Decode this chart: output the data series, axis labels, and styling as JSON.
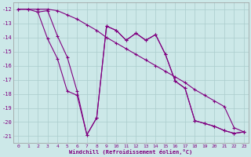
{
  "xlabel": "Windchill (Refroidissement éolien,°C)",
  "bg_color": "#cce8e8",
  "line_color": "#800080",
  "grid_color": "#aacccc",
  "xlim": [
    -0.5,
    23.5
  ],
  "ylim": [
    -21.5,
    -11.5
  ],
  "yticks": [
    -12,
    -13,
    -14,
    -15,
    -16,
    -17,
    -18,
    -19,
    -20,
    -21
  ],
  "xticks": [
    0,
    1,
    2,
    3,
    4,
    5,
    6,
    7,
    8,
    9,
    10,
    11,
    12,
    13,
    14,
    15,
    16,
    17,
    18,
    19,
    20,
    21,
    22,
    23
  ],
  "line1_x": [
    0,
    1,
    2,
    3,
    4,
    5,
    6,
    7,
    8,
    9,
    10,
    11,
    12,
    13,
    14,
    15,
    16,
    17,
    18,
    19,
    20,
    21,
    22,
    23
  ],
  "line1_y": [
    -12,
    -12,
    -12.2,
    -12.1,
    -13.9,
    -15.4,
    -17.8,
    -20.9,
    -19.7,
    -13.2,
    -13.5,
    -14.2,
    -13.7,
    -14.2,
    -13.8,
    -15.2,
    -17.1,
    -17.6,
    -19.9,
    -20.1,
    -20.3,
    -20.6,
    -20.8,
    -20.7
  ],
  "line2_x": [
    0,
    1,
    2,
    3,
    4,
    5,
    6,
    7,
    8,
    9,
    10,
    11,
    12,
    13,
    14,
    15,
    16,
    17,
    18,
    19,
    20,
    21,
    22,
    23
  ],
  "line2_y": [
    -12,
    -12,
    -12,
    -12,
    -12.1,
    -12.4,
    -12.7,
    -13.1,
    -13.5,
    -14.0,
    -14.4,
    -14.8,
    -15.2,
    -15.6,
    -16.0,
    -16.4,
    -16.8,
    -17.2,
    -17.7,
    -18.1,
    -18.5,
    -18.9,
    -20.4,
    -20.7
  ],
  "line3_x": [
    2,
    3,
    4,
    5,
    6,
    7,
    8,
    9,
    10,
    11,
    12,
    13,
    14,
    15,
    16,
    17,
    18,
    19,
    20,
    21,
    22,
    23
  ],
  "line3_y": [
    -12.2,
    -14.1,
    -15.5,
    -17.8,
    -18.1,
    -20.9,
    -19.7,
    -13.2,
    -13.5,
    -14.2,
    -13.7,
    -14.2,
    -13.8,
    -15.2,
    -17.1,
    -17.6,
    -19.9,
    -20.1,
    -20.3,
    -20.6,
    -20.8,
    -20.7
  ]
}
